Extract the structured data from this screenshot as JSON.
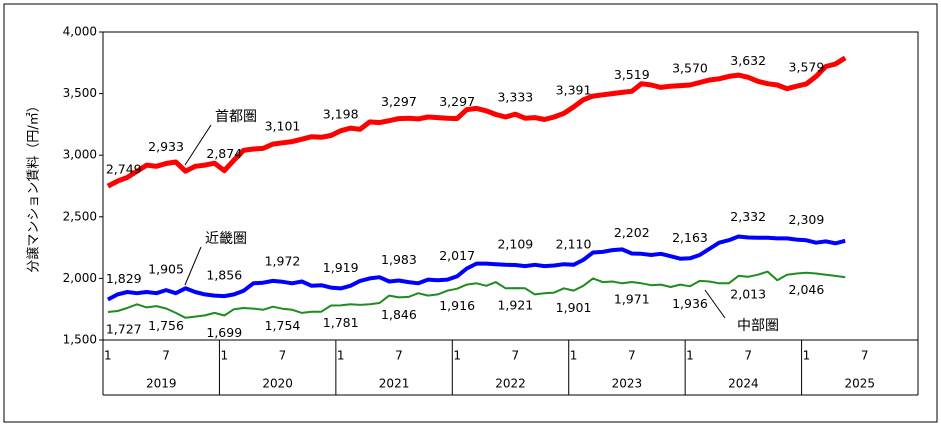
{
  "chart_data": {
    "type": "line",
    "y_label": "分譲マンション賃料（円/㎡）",
    "categories": [
      "1",
      null,
      null,
      null,
      null,
      null,
      "7",
      null,
      null,
      null,
      null,
      null,
      "1",
      null,
      null,
      null,
      null,
      null,
      "7",
      null,
      null,
      null,
      null,
      null,
      "1",
      null,
      null,
      null,
      null,
      null,
      "7",
      null,
      null,
      null,
      null,
      null,
      "1",
      null,
      null,
      null,
      null,
      null,
      "7",
      null,
      null,
      null,
      null,
      null,
      "1",
      null,
      null,
      null,
      null,
      null,
      "7",
      null,
      null,
      null,
      null,
      null,
      "1",
      null,
      null,
      null,
      null,
      null,
      "7",
      null,
      null,
      null,
      null,
      null,
      "1",
      null,
      null,
      null,
      null,
      null,
      "7",
      null,
      null,
      null,
      null,
      null
    ],
    "years": [
      "2019",
      "2020",
      "2021",
      "2022",
      "2023",
      "2024",
      "2025"
    ],
    "ylim": [
      1500,
      4000
    ],
    "yticks": [
      {
        "value": 1500,
        "label": "1,500"
      },
      {
        "value": 2000,
        "label": "2,000"
      },
      {
        "value": 2500,
        "label": "2,500"
      },
      {
        "value": 3000,
        "label": "3,000"
      },
      {
        "value": 3500,
        "label": "3,500"
      },
      {
        "value": 4000,
        "label": "4,000"
      }
    ],
    "series": [
      {
        "name": "首都圏",
        "color": "#ff0000",
        "values": [
          2749,
          2790,
          2820,
          2870,
          2920,
          2910,
          2933,
          2945,
          2870,
          2910,
          2920,
          2935,
          2874,
          2960,
          3040,
          3050,
          3055,
          3090,
          3101,
          3110,
          3130,
          3150,
          3145,
          3160,
          3198,
          3220,
          3210,
          3270,
          3265,
          3280,
          3297,
          3300,
          3295,
          3310,
          3305,
          3300,
          3297,
          3370,
          3380,
          3360,
          3330,
          3310,
          3333,
          3300,
          3305,
          3290,
          3310,
          3340,
          3391,
          3450,
          3480,
          3490,
          3500,
          3510,
          3519,
          3580,
          3570,
          3550,
          3560,
          3565,
          3570,
          3590,
          3610,
          3620,
          3640,
          3650,
          3632,
          3600,
          3580,
          3570,
          3540,
          3560,
          3579,
          3640,
          3720,
          3740,
          3790,
          null,
          null,
          null,
          null,
          null,
          null,
          null
        ],
        "value_labels": [
          "2,749",
          null,
          null,
          null,
          null,
          null,
          "2,933",
          null,
          null,
          null,
          null,
          null,
          "2,874",
          null,
          null,
          null,
          null,
          null,
          "3,101",
          null,
          null,
          null,
          null,
          null,
          "3,198",
          null,
          null,
          null,
          null,
          null,
          "3,297",
          null,
          null,
          null,
          null,
          null,
          "3,297",
          null,
          null,
          null,
          null,
          null,
          "3,333",
          null,
          null,
          null,
          null,
          null,
          "3,391",
          null,
          null,
          null,
          null,
          null,
          "3,519",
          null,
          null,
          null,
          null,
          null,
          "3,570",
          null,
          null,
          null,
          null,
          null,
          "3,632",
          null,
          null,
          null,
          null,
          null,
          "3,579",
          null,
          null,
          null,
          null,
          null,
          null,
          null,
          null,
          null,
          null,
          null
        ]
      },
      {
        "name": "近畿圏",
        "color": "#0000ff",
        "values": [
          1829,
          1870,
          1890,
          1880,
          1890,
          1880,
          1905,
          1880,
          1920,
          1890,
          1870,
          1860,
          1856,
          1870,
          1900,
          1960,
          1965,
          1980,
          1972,
          1960,
          1975,
          1940,
          1945,
          1925,
          1919,
          1940,
          1980,
          2000,
          2010,
          1975,
          1983,
          1970,
          1960,
          1990,
          1985,
          1990,
          2017,
          2080,
          2120,
          2120,
          2115,
          2110,
          2109,
          2100,
          2110,
          2100,
          2105,
          2115,
          2110,
          2150,
          2210,
          2215,
          2230,
          2235,
          2202,
          2200,
          2190,
          2200,
          2180,
          2160,
          2163,
          2190,
          2240,
          2290,
          2310,
          2340,
          2332,
          2330,
          2330,
          2325,
          2325,
          2315,
          2309,
          2290,
          2300,
          2285,
          2305,
          null,
          null,
          null,
          null,
          null,
          null,
          null
        ],
        "value_labels": [
          "1,829",
          null,
          null,
          null,
          null,
          null,
          "1,905",
          null,
          null,
          null,
          null,
          null,
          "1,856",
          null,
          null,
          null,
          null,
          null,
          "1,972",
          null,
          null,
          null,
          null,
          null,
          "1,919",
          null,
          null,
          null,
          null,
          null,
          "1,983",
          null,
          null,
          null,
          null,
          null,
          "2,017",
          null,
          null,
          null,
          null,
          null,
          "2,109",
          null,
          null,
          null,
          null,
          null,
          "2,110",
          null,
          null,
          null,
          null,
          null,
          "2,202",
          null,
          null,
          null,
          null,
          null,
          "2,163",
          null,
          null,
          null,
          null,
          null,
          "2,332",
          null,
          null,
          null,
          null,
          null,
          "2,309",
          null,
          null,
          null,
          null,
          null,
          null,
          null,
          null,
          null,
          null,
          null
        ]
      },
      {
        "name": "中部圏",
        "color": "#1e8c1e",
        "values": [
          1727,
          1735,
          1760,
          1790,
          1765,
          1775,
          1756,
          1720,
          1680,
          1690,
          1700,
          1720,
          1699,
          1750,
          1760,
          1755,
          1745,
          1770,
          1754,
          1745,
          1720,
          1730,
          1730,
          1780,
          1781,
          1790,
          1785,
          1790,
          1800,
          1860,
          1846,
          1850,
          1880,
          1860,
          1870,
          1900,
          1916,
          1950,
          1960,
          1940,
          1970,
          1920,
          1921,
          1920,
          1870,
          1880,
          1885,
          1920,
          1901,
          1940,
          2000,
          1970,
          1975,
          1960,
          1971,
          1960,
          1945,
          1950,
          1930,
          1950,
          1936,
          1980,
          1975,
          1960,
          1960,
          2020,
          2013,
          2030,
          2055,
          1985,
          2030,
          2040,
          2046,
          2040,
          2030,
          2020,
          2010,
          null,
          null,
          null,
          null,
          null,
          null,
          null
        ],
        "value_labels": [
          "1,727",
          null,
          null,
          null,
          null,
          null,
          "1,756",
          null,
          null,
          null,
          null,
          null,
          "1,699",
          null,
          null,
          null,
          null,
          null,
          "1,754",
          null,
          null,
          null,
          null,
          null,
          "1,781",
          null,
          null,
          null,
          null,
          null,
          "1,846",
          null,
          null,
          null,
          null,
          null,
          "1,916",
          null,
          null,
          null,
          null,
          null,
          "1,921",
          null,
          null,
          null,
          null,
          null,
          "1,901",
          null,
          null,
          null,
          null,
          null,
          "1,971",
          null,
          null,
          null,
          null,
          null,
          "1,936",
          null,
          null,
          null,
          null,
          null,
          "2,013",
          null,
          null,
          null,
          null,
          null,
          "2,046",
          null,
          null,
          null,
          null,
          null,
          null,
          null,
          null,
          null,
          null,
          null
        ]
      }
    ]
  }
}
